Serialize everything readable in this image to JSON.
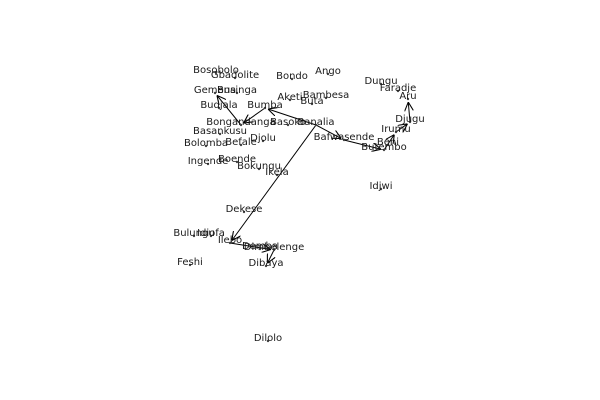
{
  "map": {
    "places": [
      {
        "id": "bosobolo",
        "name": "Bosobolo"
      },
      {
        "id": "gbadolite",
        "name": "Gbadolite"
      },
      {
        "id": "bondo",
        "name": "Bondo"
      },
      {
        "id": "ango",
        "name": "Ango"
      },
      {
        "id": "dungu",
        "name": "Dungu"
      },
      {
        "id": "faradje",
        "name": "Faradje"
      },
      {
        "id": "aru",
        "name": "Aru"
      },
      {
        "id": "gemena",
        "name": "Gemena"
      },
      {
        "id": "businga",
        "name": "Businga"
      },
      {
        "id": "aketi",
        "name": "Aketi"
      },
      {
        "id": "bambesa",
        "name": "Bambesa"
      },
      {
        "id": "buta",
        "name": "Buta"
      },
      {
        "id": "budjala",
        "name": "Budjala"
      },
      {
        "id": "bumba",
        "name": "Bumba"
      },
      {
        "id": "djugu",
        "name": "Djugu"
      },
      {
        "id": "bongandanga",
        "name": "Bongandanga"
      },
      {
        "id": "basoko",
        "name": "Basoko"
      },
      {
        "id": "banalia",
        "name": "Banalia"
      },
      {
        "id": "irumu",
        "name": "Irumu"
      },
      {
        "id": "basankusu",
        "name": "Basankusu"
      },
      {
        "id": "djolu",
        "name": "Djolu"
      },
      {
        "id": "bafwasende",
        "name": "Bafwasende"
      },
      {
        "id": "bolomba",
        "name": "Bolomba"
      },
      {
        "id": "befale",
        "name": "Befale"
      },
      {
        "id": "beni",
        "name": "Beni"
      },
      {
        "id": "butembo",
        "name": "Butembo"
      },
      {
        "id": "ingende",
        "name": "Ingende"
      },
      {
        "id": "boende",
        "name": "Boende"
      },
      {
        "id": "bokungu",
        "name": "Bokungu"
      },
      {
        "id": "ikela",
        "name": "Ikela"
      },
      {
        "id": "idjwi",
        "name": "Idjwi"
      },
      {
        "id": "dekese",
        "name": "Dekese"
      },
      {
        "id": "bulungu",
        "name": "Bulungu"
      },
      {
        "id": "idiofa",
        "name": "Idiofa"
      },
      {
        "id": "ilebo",
        "name": "Ilebo"
      },
      {
        "id": "dimbelenge",
        "name": "Dimbelenge"
      },
      {
        "id": "demba",
        "name": "Demba"
      },
      {
        "id": "feshi",
        "name": "Feshi"
      },
      {
        "id": "dibaya",
        "name": "Dibaya"
      },
      {
        "id": "dilolo",
        "name": "Dilolo"
      }
    ],
    "routes": [
      {
        "from": "banalia",
        "to": "bumba"
      },
      {
        "from": "bumba",
        "to": "bongandanga"
      },
      {
        "from": "bongandanga",
        "to": "gemena"
      },
      {
        "from": "banalia",
        "to": "bafwasende"
      },
      {
        "from": "bafwasende",
        "to": "butembo"
      },
      {
        "from": "butembo",
        "to": "irumu"
      },
      {
        "from": "irumu",
        "to": "djugu"
      },
      {
        "from": "djugu",
        "to": "aru"
      },
      {
        "from": "banalia",
        "to": "ilebo"
      },
      {
        "from": "ilebo",
        "to": "dimbelenge"
      },
      {
        "from": "dimbelenge",
        "to": "dibaya"
      }
    ]
  }
}
